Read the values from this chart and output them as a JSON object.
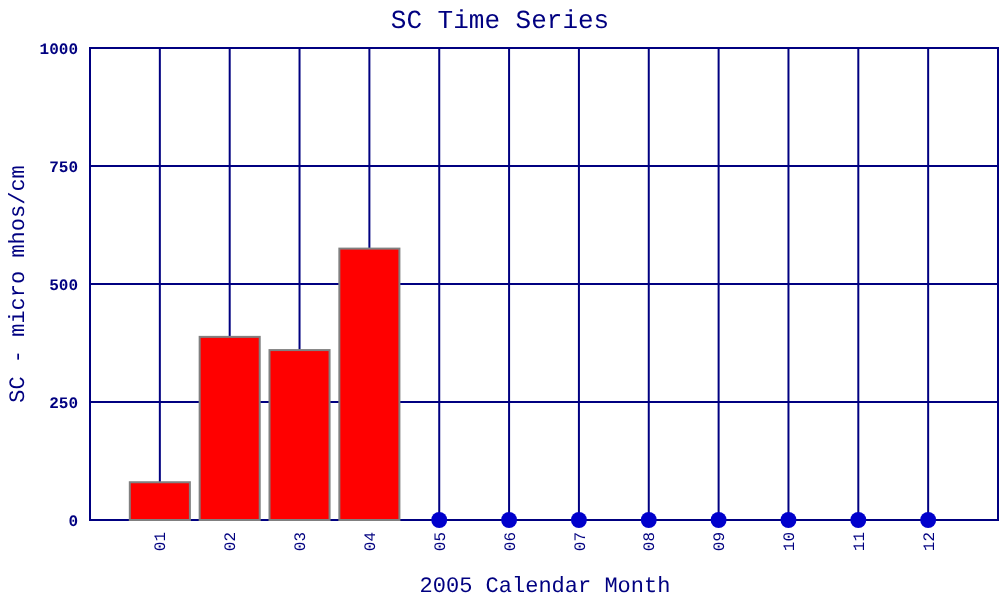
{
  "chart_data": {
    "type": "bar",
    "title": "SC Time Series",
    "xlabel": "2005 Calendar Month",
    "ylabel": "SC - micro mhos/cm",
    "categories": [
      "01",
      "02",
      "03",
      "04",
      "05",
      "06",
      "07",
      "08",
      "09",
      "10",
      "11",
      "12"
    ],
    "series": [
      {
        "color": "#ff0000",
        "values": [
          80,
          388,
          360,
          575,
          null,
          null,
          null,
          null,
          null,
          null,
          null,
          null
        ]
      },
      {
        "type": "scatter",
        "color": "#0000cc",
        "values": [
          null,
          null,
          null,
          null,
          0,
          0,
          0,
          0,
          0,
          0,
          0,
          0
        ]
      }
    ],
    "ylim": [
      0,
      1000
    ],
    "yticks": [
      0,
      250,
      500,
      750,
      1000
    ],
    "grid": true,
    "marker": "circle"
  }
}
